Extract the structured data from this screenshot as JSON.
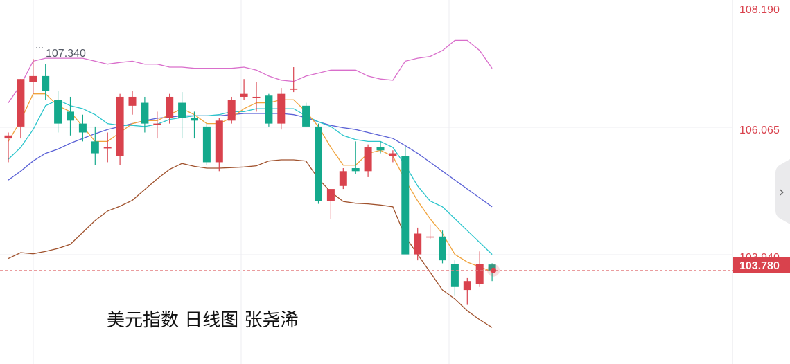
{
  "chart_data": {
    "type": "candlestick",
    "title": "美元指数  日线图  张尧浠",
    "y_axis": {
      "ticks": [
        "108.190",
        "106.065",
        "103.940"
      ],
      "ylim": [
        101.35,
        108.5
      ]
    },
    "current_price": "103.780",
    "max_marker": "107.340",
    "colors": {
      "up": "#d9424d",
      "down": "#14a98c",
      "bb_upper": "#d96ecb",
      "bb_middle": "#5b62d6",
      "bb_lower": "#a0522d",
      "ma_short": "#f0a33d",
      "ma_mid": "#2cc5cc",
      "grid": "#ececf2",
      "price_line": "#e37b7f"
    },
    "candles": [
      {
        "o": 106.0,
        "h": 106.1,
        "l": 105.6,
        "c": 106.05
      },
      {
        "o": 106.2,
        "h": 107.0,
        "l": 106.0,
        "c": 107.0
      },
      {
        "o": 106.95,
        "h": 107.34,
        "l": 106.75,
        "c": 107.05
      },
      {
        "o": 107.05,
        "h": 107.25,
        "l": 106.65,
        "c": 106.8
      },
      {
        "o": 106.65,
        "h": 106.8,
        "l": 106.1,
        "c": 106.25
      },
      {
        "o": 106.45,
        "h": 106.7,
        "l": 106.05,
        "c": 106.3
      },
      {
        "o": 106.25,
        "h": 106.4,
        "l": 105.95,
        "c": 106.1
      },
      {
        "o": 105.95,
        "h": 106.2,
        "l": 105.55,
        "c": 105.75
      },
      {
        "o": 105.85,
        "h": 106.1,
        "l": 105.6,
        "c": 105.85
      },
      {
        "o": 105.7,
        "h": 106.75,
        "l": 105.55,
        "c": 106.7
      },
      {
        "o": 106.55,
        "h": 106.8,
        "l": 106.4,
        "c": 106.7
      },
      {
        "o": 106.6,
        "h": 106.7,
        "l": 106.1,
        "c": 106.25
      },
      {
        "o": 106.25,
        "h": 106.45,
        "l": 106.0,
        "c": 106.25
      },
      {
        "o": 106.35,
        "h": 106.75,
        "l": 106.25,
        "c": 106.7
      },
      {
        "o": 106.6,
        "h": 106.78,
        "l": 106.0,
        "c": 106.35
      },
      {
        "o": 106.35,
        "h": 106.45,
        "l": 106.0,
        "c": 106.3
      },
      {
        "o": 106.2,
        "h": 106.25,
        "l": 105.55,
        "c": 105.6
      },
      {
        "o": 105.6,
        "h": 106.35,
        "l": 105.45,
        "c": 106.3
      },
      {
        "o": 106.3,
        "h": 106.7,
        "l": 106.25,
        "c": 106.65
      },
      {
        "o": 106.7,
        "h": 107.0,
        "l": 106.65,
        "c": 106.75
      },
      {
        "o": 106.7,
        "h": 106.95,
        "l": 106.45,
        "c": 106.7
      },
      {
        "o": 106.72,
        "h": 106.75,
        "l": 106.2,
        "c": 106.25
      },
      {
        "o": 106.25,
        "h": 106.85,
        "l": 106.15,
        "c": 106.75
      },
      {
        "o": 106.82,
        "h": 107.2,
        "l": 106.78,
        "c": 106.84
      },
      {
        "o": 106.55,
        "h": 106.6,
        "l": 106.2,
        "c": 106.2
      },
      {
        "o": 106.2,
        "h": 106.25,
        "l": 104.9,
        "c": 104.95
      },
      {
        "o": 104.95,
        "h": 105.15,
        "l": 104.65,
        "c": 105.15
      },
      {
        "o": 105.2,
        "h": 105.5,
        "l": 105.15,
        "c": 105.45
      },
      {
        "o": 105.5,
        "h": 105.95,
        "l": 105.4,
        "c": 105.45
      },
      {
        "o": 105.45,
        "h": 105.9,
        "l": 105.35,
        "c": 105.85
      },
      {
        "o": 105.85,
        "h": 105.95,
        "l": 105.75,
        "c": 105.8
      },
      {
        "o": 105.7,
        "h": 105.8,
        "l": 105.6,
        "c": 105.75
      },
      {
        "o": 105.7,
        "h": 105.85,
        "l": 104.05,
        "c": 104.05
      },
      {
        "o": 104.05,
        "h": 104.5,
        "l": 103.95,
        "c": 104.4
      },
      {
        "o": 104.35,
        "h": 104.55,
        "l": 104.3,
        "c": 104.35
      },
      {
        "o": 104.35,
        "h": 104.45,
        "l": 103.9,
        "c": 103.95
      },
      {
        "o": 103.89,
        "h": 103.95,
        "l": 103.35,
        "c": 103.5
      },
      {
        "o": 103.45,
        "h": 103.65,
        "l": 103.2,
        "c": 103.6
      },
      {
        "o": 103.55,
        "h": 104.1,
        "l": 103.5,
        "c": 103.89
      },
      {
        "o": 103.88,
        "h": 103.9,
        "l": 103.6,
        "c": 103.78
      }
    ],
    "ma_short": [
      {
        "i": 0,
        "v": 105.95
      },
      {
        "i": 1,
        "v": 106.3
      },
      {
        "i": 2,
        "v": 106.75
      },
      {
        "i": 3,
        "v": 106.75
      },
      {
        "i": 4,
        "v": 106.55
      },
      {
        "i": 5,
        "v": 106.45
      },
      {
        "i": 6,
        "v": 106.2
      },
      {
        "i": 7,
        "v": 105.95
      },
      {
        "i": 8,
        "v": 105.95
      },
      {
        "i": 9,
        "v": 106.1
      },
      {
        "i": 10,
        "v": 106.25
      },
      {
        "i": 11,
        "v": 106.3
      },
      {
        "i": 12,
        "v": 106.3
      },
      {
        "i": 13,
        "v": 106.4
      },
      {
        "i": 14,
        "v": 106.5
      },
      {
        "i": 15,
        "v": 106.4
      },
      {
        "i": 16,
        "v": 106.25
      },
      {
        "i": 17,
        "v": 106.25
      },
      {
        "i": 18,
        "v": 106.35
      },
      {
        "i": 19,
        "v": 106.5
      },
      {
        "i": 20,
        "v": 106.6
      },
      {
        "i": 21,
        "v": 106.6
      },
      {
        "i": 22,
        "v": 106.65
      },
      {
        "i": 23,
        "v": 106.65
      },
      {
        "i": 24,
        "v": 106.45
      },
      {
        "i": 25,
        "v": 106.2
      },
      {
        "i": 26,
        "v": 105.85
      },
      {
        "i": 27,
        "v": 105.55
      },
      {
        "i": 28,
        "v": 105.55
      },
      {
        "i": 29,
        "v": 105.75
      },
      {
        "i": 30,
        "v": 105.8
      },
      {
        "i": 31,
        "v": 105.7
      },
      {
        "i": 32,
        "v": 105.3
      },
      {
        "i": 33,
        "v": 104.95
      },
      {
        "i": 34,
        "v": 104.65
      },
      {
        "i": 35,
        "v": 104.4
      },
      {
        "i": 36,
        "v": 104.05
      },
      {
        "i": 37,
        "v": 103.92
      },
      {
        "i": 38,
        "v": 103.84
      },
      {
        "i": 39,
        "v": 103.76
      }
    ],
    "ma_mid": [
      {
        "i": 0,
        "v": 105.65
      },
      {
        "i": 1,
        "v": 105.85
      },
      {
        "i": 2,
        "v": 106.15
      },
      {
        "i": 3,
        "v": 106.55
      },
      {
        "i": 4,
        "v": 106.65
      },
      {
        "i": 5,
        "v": 106.55
      },
      {
        "i": 6,
        "v": 106.5
      },
      {
        "i": 7,
        "v": 106.4
      },
      {
        "i": 8,
        "v": 106.25
      },
      {
        "i": 9,
        "v": 106.22
      },
      {
        "i": 10,
        "v": 106.22
      },
      {
        "i": 11,
        "v": 106.2
      },
      {
        "i": 12,
        "v": 106.24
      },
      {
        "i": 13,
        "v": 106.32
      },
      {
        "i": 14,
        "v": 106.35
      },
      {
        "i": 15,
        "v": 106.38
      },
      {
        "i": 16,
        "v": 106.38
      },
      {
        "i": 17,
        "v": 106.4
      },
      {
        "i": 18,
        "v": 106.45
      },
      {
        "i": 19,
        "v": 106.45
      },
      {
        "i": 20,
        "v": 106.5
      },
      {
        "i": 21,
        "v": 106.5
      },
      {
        "i": 22,
        "v": 106.5
      },
      {
        "i": 23,
        "v": 106.5
      },
      {
        "i": 24,
        "v": 106.38
      },
      {
        "i": 25,
        "v": 106.28
      },
      {
        "i": 26,
        "v": 106.2
      },
      {
        "i": 27,
        "v": 106.05
      },
      {
        "i": 28,
        "v": 105.98
      },
      {
        "i": 29,
        "v": 105.95
      },
      {
        "i": 30,
        "v": 105.95
      },
      {
        "i": 31,
        "v": 105.85
      },
      {
        "i": 32,
        "v": 105.55
      },
      {
        "i": 33,
        "v": 105.2
      },
      {
        "i": 34,
        "v": 104.95
      },
      {
        "i": 35,
        "v": 104.85
      },
      {
        "i": 36,
        "v": 104.65
      },
      {
        "i": 37,
        "v": 104.45
      },
      {
        "i": 38,
        "v": 104.25
      },
      {
        "i": 39,
        "v": 104.05
      }
    ],
    "bb_upper": [
      {
        "i": 0,
        "v": 106.6
      },
      {
        "i": 1,
        "v": 106.9
      },
      {
        "i": 2,
        "v": 107.3
      },
      {
        "i": 3,
        "v": 107.35
      },
      {
        "i": 4,
        "v": 107.35
      },
      {
        "i": 5,
        "v": 107.35
      },
      {
        "i": 6,
        "v": 107.35
      },
      {
        "i": 7,
        "v": 107.3
      },
      {
        "i": 8,
        "v": 107.25
      },
      {
        "i": 9,
        "v": 107.28
      },
      {
        "i": 10,
        "v": 107.3
      },
      {
        "i": 11,
        "v": 107.25
      },
      {
        "i": 12,
        "v": 107.25
      },
      {
        "i": 13,
        "v": 107.2
      },
      {
        "i": 14,
        "v": 107.2
      },
      {
        "i": 15,
        "v": 107.18
      },
      {
        "i": 16,
        "v": 107.18
      },
      {
        "i": 17,
        "v": 107.18
      },
      {
        "i": 18,
        "v": 107.18
      },
      {
        "i": 19,
        "v": 107.2
      },
      {
        "i": 20,
        "v": 107.15
      },
      {
        "i": 21,
        "v": 107.05
      },
      {
        "i": 22,
        "v": 106.98
      },
      {
        "i": 23,
        "v": 106.96
      },
      {
        "i": 24,
        "v": 107.05
      },
      {
        "i": 25,
        "v": 107.1
      },
      {
        "i": 26,
        "v": 107.15
      },
      {
        "i": 27,
        "v": 107.15
      },
      {
        "i": 28,
        "v": 107.15
      },
      {
        "i": 29,
        "v": 107.05
      },
      {
        "i": 30,
        "v": 107.0
      },
      {
        "i": 31,
        "v": 106.98
      },
      {
        "i": 32,
        "v": 107.3
      },
      {
        "i": 33,
        "v": 107.35
      },
      {
        "i": 34,
        "v": 107.38
      },
      {
        "i": 35,
        "v": 107.48
      },
      {
        "i": 36,
        "v": 107.65
      },
      {
        "i": 37,
        "v": 107.65
      },
      {
        "i": 38,
        "v": 107.48
      },
      {
        "i": 39,
        "v": 107.18
      }
    ],
    "bb_middle": [
      {
        "i": 0,
        "v": 105.3
      },
      {
        "i": 1,
        "v": 105.45
      },
      {
        "i": 2,
        "v": 105.62
      },
      {
        "i": 3,
        "v": 105.75
      },
      {
        "i": 4,
        "v": 105.82
      },
      {
        "i": 5,
        "v": 105.92
      },
      {
        "i": 6,
        "v": 106.0
      },
      {
        "i": 7,
        "v": 106.08
      },
      {
        "i": 8,
        "v": 106.15
      },
      {
        "i": 9,
        "v": 106.2
      },
      {
        "i": 10,
        "v": 106.25
      },
      {
        "i": 11,
        "v": 106.3
      },
      {
        "i": 12,
        "v": 106.34
      },
      {
        "i": 13,
        "v": 106.36
      },
      {
        "i": 14,
        "v": 106.38
      },
      {
        "i": 15,
        "v": 106.38
      },
      {
        "i": 16,
        "v": 106.38
      },
      {
        "i": 17,
        "v": 106.38
      },
      {
        "i": 18,
        "v": 106.4
      },
      {
        "i": 19,
        "v": 106.42
      },
      {
        "i": 20,
        "v": 106.42
      },
      {
        "i": 21,
        "v": 106.42
      },
      {
        "i": 22,
        "v": 106.42
      },
      {
        "i": 23,
        "v": 106.4
      },
      {
        "i": 24,
        "v": 106.35
      },
      {
        "i": 25,
        "v": 106.28
      },
      {
        "i": 26,
        "v": 106.22
      },
      {
        "i": 27,
        "v": 106.18
      },
      {
        "i": 28,
        "v": 106.15
      },
      {
        "i": 29,
        "v": 106.1
      },
      {
        "i": 30,
        "v": 106.05
      },
      {
        "i": 31,
        "v": 106.0
      },
      {
        "i": 32,
        "v": 105.88
      },
      {
        "i": 33,
        "v": 105.75
      },
      {
        "i": 34,
        "v": 105.6
      },
      {
        "i": 35,
        "v": 105.45
      },
      {
        "i": 36,
        "v": 105.3
      },
      {
        "i": 37,
        "v": 105.15
      },
      {
        "i": 38,
        "v": 105.0
      },
      {
        "i": 39,
        "v": 104.85
      }
    ],
    "bb_lower": [
      {
        "i": 0,
        "v": 103.98
      },
      {
        "i": 1,
        "v": 104.08
      },
      {
        "i": 2,
        "v": 104.06
      },
      {
        "i": 3,
        "v": 104.1
      },
      {
        "i": 4,
        "v": 104.15
      },
      {
        "i": 5,
        "v": 104.22
      },
      {
        "i": 6,
        "v": 104.42
      },
      {
        "i": 7,
        "v": 104.62
      },
      {
        "i": 8,
        "v": 104.78
      },
      {
        "i": 9,
        "v": 104.86
      },
      {
        "i": 10,
        "v": 104.96
      },
      {
        "i": 11,
        "v": 105.14
      },
      {
        "i": 12,
        "v": 105.32
      },
      {
        "i": 13,
        "v": 105.48
      },
      {
        "i": 14,
        "v": 105.58
      },
      {
        "i": 15,
        "v": 105.53
      },
      {
        "i": 16,
        "v": 105.5
      },
      {
        "i": 17,
        "v": 105.5
      },
      {
        "i": 18,
        "v": 105.51
      },
      {
        "i": 19,
        "v": 105.52
      },
      {
        "i": 20,
        "v": 105.54
      },
      {
        "i": 21,
        "v": 105.62
      },
      {
        "i": 22,
        "v": 105.64
      },
      {
        "i": 23,
        "v": 105.64
      },
      {
        "i": 24,
        "v": 105.62
      },
      {
        "i": 25,
        "v": 105.32
      },
      {
        "i": 26,
        "v": 105.1
      },
      {
        "i": 27,
        "v": 104.94
      },
      {
        "i": 28,
        "v": 104.91
      },
      {
        "i": 29,
        "v": 104.9
      },
      {
        "i": 30,
        "v": 104.88
      },
      {
        "i": 31,
        "v": 104.85
      },
      {
        "i": 32,
        "v": 104.35
      },
      {
        "i": 33,
        "v": 104.05
      },
      {
        "i": 34,
        "v": 103.75
      },
      {
        "i": 35,
        "v": 103.45
      },
      {
        "i": 36,
        "v": 103.3
      },
      {
        "i": 37,
        "v": 103.1
      },
      {
        "i": 38,
        "v": 102.95
      },
      {
        "i": 39,
        "v": 102.82
      }
    ]
  },
  "side_handle": {
    "icon": "chevron-right-icon",
    "glyph": "›"
  }
}
